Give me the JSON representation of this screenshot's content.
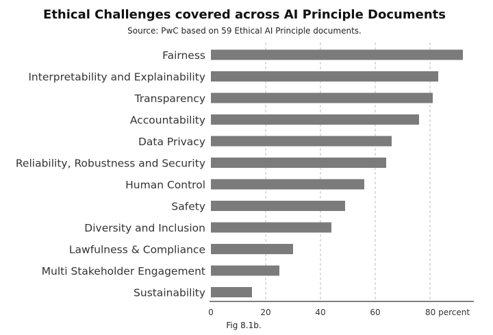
{
  "chart_data": {
    "type": "bar",
    "orientation": "horizontal",
    "title": "Ethical Challenges covered across AI Principle Documents",
    "subtitle": "Source: PwC based on 59 Ethical AI Principle documents.",
    "categories": [
      "Fairness",
      "Interpretability and Explainability",
      "Transparency",
      "Accountability",
      "Data Privacy",
      "Reliability, Robustness and Security",
      "Human Control",
      "Safety",
      "Diversity and Inclusion",
      "Lawfulness & Compliance",
      "Multi Stakeholder Engagement",
      "Sustainability"
    ],
    "values": [
      92,
      83,
      81,
      76,
      66,
      64,
      56,
      49,
      44,
      30,
      25,
      15
    ],
    "x_ticks": [
      "0",
      "20",
      "40",
      "60",
      "80 percent"
    ],
    "x_tick_values": [
      0,
      20,
      40,
      60,
      80
    ],
    "xlim": [
      0,
      96
    ],
    "grid": true,
    "bar_color": "#7b7b7b",
    "caption": "Fig 8.1b."
  }
}
